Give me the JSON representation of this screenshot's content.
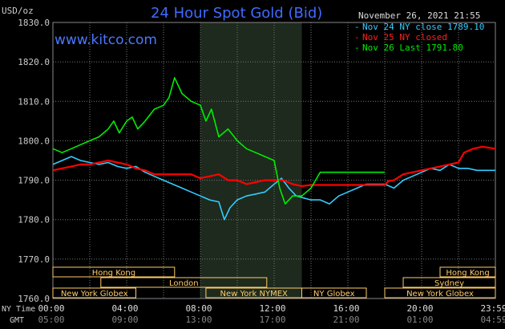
{
  "header": {
    "title": "24 Hour Spot Gold (Bid)",
    "unit": "USD/oz",
    "website": "www.kitco.com",
    "timestamp": "November 26, 2021 21:55"
  },
  "legend": {
    "items": [
      {
        "label": "Nov 24 NY close 1789.10",
        "color": "#33ccff"
      },
      {
        "label": "Nov 25 NY closed",
        "color": "#ff0000"
      },
      {
        "label": "Nov 26 Last 1791.80",
        "color": "#00ee00"
      }
    ]
  },
  "axis": {
    "ny_time_label": "NY Time",
    "gmt_label": "GMT",
    "gmt_ticks": [
      "05:00",
      "09:00",
      "13:00",
      "17:00",
      "21:00",
      "01:00",
      "04:59"
    ]
  },
  "sessions": [
    {
      "name": "Hong Kong",
      "start": 0,
      "end": 6.6,
      "row": 0
    },
    {
      "name": "Hong Kong",
      "start": 21,
      "end": 24,
      "row": 0
    },
    {
      "name": "London",
      "start": 2.6,
      "end": 11.6,
      "row": 1
    },
    {
      "name": "Sydney",
      "start": 19,
      "end": 24,
      "row": 1
    },
    {
      "name": "New York Globex",
      "start": 0,
      "end": 4.5,
      "row": 2
    },
    {
      "name": "New York NYMEX",
      "start": 8.3,
      "end": 13.5,
      "row": 2
    },
    {
      "name": "NY Globex",
      "start": 13.5,
      "end": 17,
      "row": 2
    },
    {
      "name": "New York Globex",
      "start": 18,
      "end": 24,
      "row": 2
    }
  ],
  "colors": {
    "background": "#000000",
    "grid": "#777777",
    "title": "#3f6bff",
    "session_box": "#ffcc66",
    "axis_text": "#cccccc"
  },
  "chart_data": {
    "type": "line",
    "title": "24 Hour Spot Gold (Bid)",
    "ylabel": "USD/oz",
    "ylim": [
      1760,
      1830
    ],
    "yticks": [
      1760,
      1770,
      1780,
      1790,
      1800,
      1810,
      1820,
      1830
    ],
    "ytick_labels": [
      "1760.0",
      "1770.0",
      "1780.0",
      "1790.0",
      "1800.0",
      "1810.0",
      "1820.0",
      "1830.0"
    ],
    "xlim": [
      0,
      24
    ],
    "xticks": [
      0,
      4,
      8,
      12,
      16,
      20,
      24
    ],
    "xtick_labels": [
      "00:00",
      "04:00",
      "08:00",
      "12:00",
      "16:00",
      "20:00",
      "23:59"
    ],
    "shaded_range": [
      8,
      13.5
    ],
    "grid": true,
    "legend_position": "top-right",
    "series": [
      {
        "name": "Nov 24 NY close 1789.10",
        "color": "#33ccff",
        "points": [
          [
            0,
            1794
          ],
          [
            0.5,
            1795
          ],
          [
            1,
            1796
          ],
          [
            1.5,
            1795
          ],
          [
            2,
            1794.5
          ],
          [
            2.5,
            1794
          ],
          [
            3,
            1794.5
          ],
          [
            3.5,
            1793.5
          ],
          [
            4,
            1793
          ],
          [
            4.5,
            1793.5
          ],
          [
            5,
            1792
          ],
          [
            5.5,
            1791
          ],
          [
            6,
            1790
          ],
          [
            6.5,
            1789
          ],
          [
            7,
            1788
          ],
          [
            7.5,
            1787
          ],
          [
            8,
            1786
          ],
          [
            8.5,
            1785
          ],
          [
            9,
            1784.5
          ],
          [
            9.3,
            1780
          ],
          [
            9.6,
            1783
          ],
          [
            10,
            1785
          ],
          [
            10.5,
            1786
          ],
          [
            11,
            1786.5
          ],
          [
            11.5,
            1787
          ],
          [
            12,
            1789
          ],
          [
            12.4,
            1790.5
          ],
          [
            12.8,
            1788
          ],
          [
            13.2,
            1786
          ],
          [
            13.6,
            1785.5
          ],
          [
            14,
            1785
          ],
          [
            14.5,
            1785
          ],
          [
            15,
            1784
          ],
          [
            15.5,
            1786
          ],
          [
            16,
            1787
          ],
          [
            16.5,
            1788
          ],
          [
            17,
            1789
          ],
          [
            17.5,
            1789
          ],
          [
            18,
            1789
          ],
          [
            18.5,
            1788
          ],
          [
            19,
            1790
          ],
          [
            19.5,
            1791
          ],
          [
            20,
            1792
          ],
          [
            20.5,
            1793
          ],
          [
            21,
            1792.5
          ],
          [
            21.5,
            1794
          ],
          [
            22,
            1793
          ],
          [
            22.5,
            1793
          ],
          [
            23,
            1792.5
          ],
          [
            23.5,
            1792.5
          ],
          [
            24,
            1792.5
          ]
        ]
      },
      {
        "name": "Nov 25 NY closed",
        "color": "#ff0000",
        "points": [
          [
            0,
            1792.5
          ],
          [
            0.5,
            1793
          ],
          [
            1,
            1793.5
          ],
          [
            1.5,
            1794
          ],
          [
            2,
            1794
          ],
          [
            2.5,
            1794.5
          ],
          [
            3,
            1795
          ],
          [
            3.5,
            1794.5
          ],
          [
            4,
            1794
          ],
          [
            4.5,
            1793
          ],
          [
            5,
            1792.5
          ],
          [
            5.5,
            1791.5
          ],
          [
            6,
            1791.5
          ],
          [
            6.5,
            1791.5
          ],
          [
            7,
            1791.5
          ],
          [
            7.5,
            1791.5
          ],
          [
            8,
            1790.5
          ],
          [
            8.5,
            1791
          ],
          [
            9,
            1791.5
          ],
          [
            9.5,
            1790
          ],
          [
            10,
            1790
          ],
          [
            10.5,
            1789
          ],
          [
            11,
            1789.5
          ],
          [
            11.5,
            1790
          ],
          [
            12,
            1790
          ],
          [
            12.5,
            1790
          ],
          [
            13,
            1789
          ],
          [
            13.5,
            1788.5
          ],
          [
            14,
            1788.8
          ],
          [
            18,
            1788.8
          ],
          [
            18.2,
            1789.8
          ],
          [
            18.5,
            1790
          ],
          [
            19,
            1791.5
          ],
          [
            19.5,
            1792
          ],
          [
            20,
            1792.5
          ],
          [
            20.5,
            1793
          ],
          [
            21,
            1793.5
          ],
          [
            21.5,
            1794
          ],
          [
            22,
            1794.5
          ],
          [
            22.3,
            1797
          ],
          [
            22.8,
            1798
          ],
          [
            23.3,
            1798.5
          ],
          [
            24,
            1798
          ]
        ]
      },
      {
        "name": "Nov 26 Last 1791.80",
        "color": "#00ee00",
        "points": [
          [
            0,
            1798
          ],
          [
            0.5,
            1797
          ],
          [
            1,
            1798
          ],
          [
            1.5,
            1799
          ],
          [
            2,
            1800
          ],
          [
            2.5,
            1801
          ],
          [
            3,
            1803
          ],
          [
            3.3,
            1805
          ],
          [
            3.6,
            1802
          ],
          [
            4,
            1805
          ],
          [
            4.3,
            1806
          ],
          [
            4.6,
            1803
          ],
          [
            5,
            1805
          ],
          [
            5.5,
            1808
          ],
          [
            6,
            1809
          ],
          [
            6.3,
            1811
          ],
          [
            6.6,
            1816
          ],
          [
            7,
            1812
          ],
          [
            7.5,
            1810
          ],
          [
            8,
            1809
          ],
          [
            8.3,
            1805
          ],
          [
            8.6,
            1808
          ],
          [
            9,
            1801
          ],
          [
            9.5,
            1803
          ],
          [
            10,
            1800
          ],
          [
            10.5,
            1798
          ],
          [
            11,
            1797
          ],
          [
            11.5,
            1796
          ],
          [
            12,
            1795
          ],
          [
            12.3,
            1788
          ],
          [
            12.6,
            1784
          ],
          [
            13,
            1786
          ],
          [
            13.5,
            1786
          ],
          [
            14,
            1788
          ],
          [
            14.5,
            1792
          ],
          [
            18,
            1792
          ]
        ]
      }
    ]
  }
}
